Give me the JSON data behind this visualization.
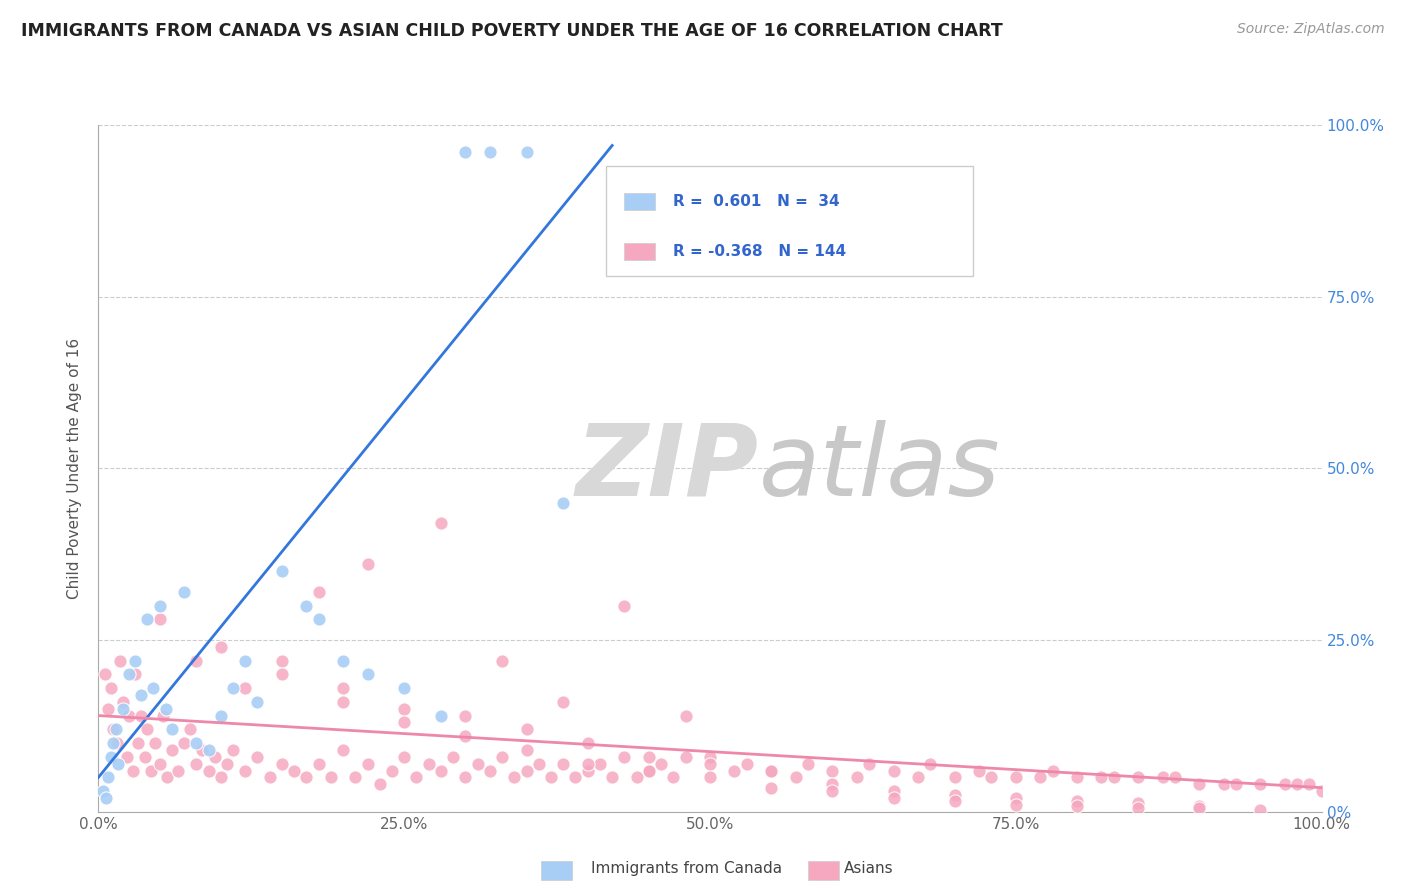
{
  "title": "IMMIGRANTS FROM CANADA VS ASIAN CHILD POVERTY UNDER THE AGE OF 16 CORRELATION CHART",
  "source": "Source: ZipAtlas.com",
  "ylabel": "Child Poverty Under the Age of 16",
  "canada_R": 0.601,
  "canada_N": 34,
  "asian_R": -0.368,
  "asian_N": 144,
  "canada_color": "#a8cef5",
  "asian_color": "#f5a8c0",
  "canada_line_color": "#3377dd",
  "asian_line_color": "#ee88aa",
  "watermark_zip": "ZIP",
  "watermark_atlas": "atlas",
  "background_color": "#ffffff",
  "canada_line_x0": 0.0,
  "canada_line_y0": 5.0,
  "canada_line_x1": 42.0,
  "canada_line_y1": 97.0,
  "asian_line_x0": 0.0,
  "asian_line_y0": 14.0,
  "asian_line_x1": 100.0,
  "asian_line_y1": 3.5,
  "xlim": [
    0,
    100
  ],
  "ylim": [
    0,
    100
  ],
  "canada_x": [
    0.4,
    0.6,
    0.8,
    1.0,
    1.2,
    1.4,
    1.6,
    2.0,
    2.5,
    3.0,
    3.5,
    4.0,
    4.5,
    5.0,
    5.5,
    6.0,
    7.0,
    8.0,
    9.0,
    10.0,
    11.0,
    12.0,
    13.0,
    15.0,
    17.0,
    18.0,
    20.0,
    22.0,
    25.0,
    28.0,
    30.0,
    32.0,
    35.0,
    38.0
  ],
  "canada_y": [
    3.0,
    2.0,
    5.0,
    8.0,
    10.0,
    12.0,
    7.0,
    15.0,
    20.0,
    22.0,
    17.0,
    28.0,
    18.0,
    30.0,
    15.0,
    12.0,
    32.0,
    10.0,
    9.0,
    14.0,
    18.0,
    22.0,
    16.0,
    35.0,
    30.0,
    28.0,
    22.0,
    20.0,
    18.0,
    14.0,
    96.0,
    96.0,
    96.0,
    45.0
  ],
  "asian_x": [
    0.5,
    0.8,
    1.0,
    1.2,
    1.5,
    1.8,
    2.0,
    2.3,
    2.5,
    2.8,
    3.0,
    3.2,
    3.5,
    3.8,
    4.0,
    4.3,
    4.6,
    5.0,
    5.3,
    5.6,
    6.0,
    6.5,
    7.0,
    7.5,
    8.0,
    8.5,
    9.0,
    9.5,
    10.0,
    10.5,
    11.0,
    12.0,
    13.0,
    14.0,
    15.0,
    16.0,
    17.0,
    18.0,
    19.0,
    20.0,
    21.0,
    22.0,
    23.0,
    24.0,
    25.0,
    26.0,
    27.0,
    28.0,
    29.0,
    30.0,
    31.0,
    32.0,
    33.0,
    34.0,
    35.0,
    36.0,
    37.0,
    38.0,
    39.0,
    40.0,
    41.0,
    42.0,
    43.0,
    44.0,
    45.0,
    46.0,
    47.0,
    48.0,
    50.0,
    52.0,
    53.0,
    55.0,
    57.0,
    58.0,
    60.0,
    62.0,
    63.0,
    65.0,
    67.0,
    68.0,
    70.0,
    72.0,
    73.0,
    75.0,
    77.0,
    78.0,
    80.0,
    82.0,
    83.0,
    85.0,
    87.0,
    88.0,
    90.0,
    92.0,
    93.0,
    95.0,
    97.0,
    98.0,
    99.0,
    100.0,
    15.0,
    20.0,
    25.0,
    30.0,
    35.0,
    40.0,
    45.0,
    50.0,
    55.0,
    60.0,
    65.0,
    70.0,
    75.0,
    80.0,
    85.0,
    90.0,
    10.0,
    15.0,
    20.0,
    25.0,
    30.0,
    35.0,
    40.0,
    45.0,
    50.0,
    55.0,
    60.0,
    65.0,
    70.0,
    75.0,
    80.0,
    85.0,
    90.0,
    95.0,
    5.0,
    8.0,
    12.0,
    18.0,
    22.0,
    28.0,
    33.0,
    38.0,
    43.0,
    48.0
  ],
  "asian_y": [
    20.0,
    15.0,
    18.0,
    12.0,
    10.0,
    22.0,
    16.0,
    8.0,
    14.0,
    6.0,
    20.0,
    10.0,
    14.0,
    8.0,
    12.0,
    6.0,
    10.0,
    7.0,
    14.0,
    5.0,
    9.0,
    6.0,
    10.0,
    12.0,
    7.0,
    9.0,
    6.0,
    8.0,
    5.0,
    7.0,
    9.0,
    6.0,
    8.0,
    5.0,
    7.0,
    6.0,
    5.0,
    7.0,
    5.0,
    9.0,
    5.0,
    7.0,
    4.0,
    6.0,
    8.0,
    5.0,
    7.0,
    6.0,
    8.0,
    5.0,
    7.0,
    6.0,
    8.0,
    5.0,
    6.0,
    7.0,
    5.0,
    7.0,
    5.0,
    6.0,
    7.0,
    5.0,
    8.0,
    5.0,
    6.0,
    7.0,
    5.0,
    8.0,
    8.0,
    6.0,
    7.0,
    6.0,
    5.0,
    7.0,
    6.0,
    5.0,
    7.0,
    6.0,
    5.0,
    7.0,
    5.0,
    6.0,
    5.0,
    5.0,
    5.0,
    6.0,
    5.0,
    5.0,
    5.0,
    5.0,
    5.0,
    5.0,
    4.0,
    4.0,
    4.0,
    4.0,
    4.0,
    4.0,
    4.0,
    3.0,
    22.0,
    18.0,
    15.0,
    14.0,
    12.0,
    10.0,
    8.0,
    7.0,
    6.0,
    4.0,
    3.0,
    2.5,
    2.0,
    1.5,
    1.2,
    0.8,
    24.0,
    20.0,
    16.0,
    13.0,
    11.0,
    9.0,
    7.0,
    6.0,
    5.0,
    3.5,
    3.0,
    2.0,
    1.5,
    1.0,
    0.8,
    0.6,
    0.5,
    0.3,
    28.0,
    22.0,
    18.0,
    32.0,
    36.0,
    42.0,
    22.0,
    16.0,
    30.0,
    14.0
  ]
}
